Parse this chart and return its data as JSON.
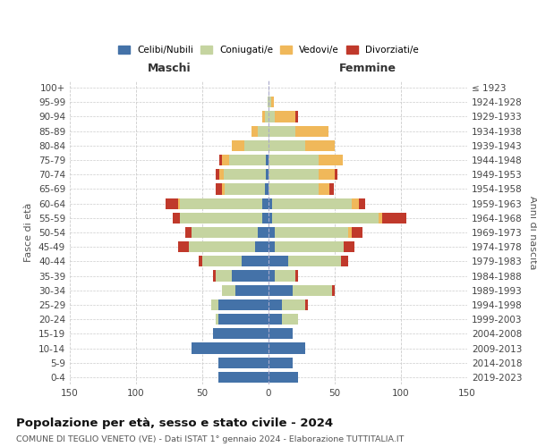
{
  "age_groups": [
    "0-4",
    "5-9",
    "10-14",
    "15-19",
    "20-24",
    "25-29",
    "30-34",
    "35-39",
    "40-44",
    "45-49",
    "50-54",
    "55-59",
    "60-64",
    "65-69",
    "70-74",
    "75-79",
    "80-84",
    "85-89",
    "90-94",
    "95-99",
    "100+"
  ],
  "birth_years": [
    "2019-2023",
    "2014-2018",
    "2009-2013",
    "2004-2008",
    "1999-2003",
    "1994-1998",
    "1989-1993",
    "1984-1988",
    "1979-1983",
    "1974-1978",
    "1969-1973",
    "1964-1968",
    "1959-1963",
    "1954-1958",
    "1949-1953",
    "1944-1948",
    "1939-1943",
    "1934-1938",
    "1929-1933",
    "1924-1928",
    "≤ 1923"
  ],
  "male": {
    "celibi": [
      38,
      38,
      58,
      42,
      38,
      38,
      25,
      28,
      20,
      10,
      8,
      5,
      5,
      3,
      2,
      2,
      0,
      0,
      0,
      0,
      0
    ],
    "coniugati": [
      0,
      0,
      0,
      0,
      2,
      5,
      10,
      12,
      30,
      50,
      50,
      62,
      62,
      30,
      32,
      28,
      18,
      8,
      3,
      1,
      0
    ],
    "vedovi": [
      0,
      0,
      0,
      0,
      0,
      0,
      0,
      0,
      0,
      0,
      0,
      0,
      1,
      2,
      3,
      5,
      10,
      5,
      2,
      0,
      0
    ],
    "divorziati": [
      0,
      0,
      0,
      0,
      0,
      0,
      0,
      2,
      3,
      8,
      5,
      5,
      10,
      5,
      3,
      2,
      0,
      0,
      0,
      0,
      0
    ]
  },
  "female": {
    "nubili": [
      22,
      18,
      28,
      18,
      10,
      10,
      18,
      5,
      15,
      5,
      5,
      3,
      3,
      0,
      0,
      0,
      0,
      0,
      0,
      0,
      0
    ],
    "coniugate": [
      0,
      0,
      0,
      0,
      12,
      18,
      30,
      15,
      40,
      52,
      55,
      80,
      60,
      38,
      38,
      38,
      28,
      20,
      5,
      2,
      0
    ],
    "vedove": [
      0,
      0,
      0,
      0,
      0,
      0,
      0,
      0,
      0,
      0,
      3,
      3,
      5,
      8,
      12,
      18,
      22,
      25,
      15,
      2,
      0
    ],
    "divorziate": [
      0,
      0,
      0,
      0,
      0,
      2,
      2,
      2,
      5,
      8,
      8,
      18,
      5,
      3,
      2,
      0,
      0,
      0,
      2,
      0,
      0
    ]
  },
  "colors": {
    "celibi": "#4472a8",
    "coniugati": "#c5d4a0",
    "vedovi": "#f0b85a",
    "divorziati": "#c0392b"
  },
  "xlim": 150,
  "title": "Popolazione per età, sesso e stato civile - 2024",
  "subtitle": "COMUNE DI TEGLIO VENETO (VE) - Dati ISTAT 1° gennaio 2024 - Elaborazione TUTTITALIA.IT",
  "ylabel_left": "Fasce di età",
  "ylabel_right": "Anni di nascita",
  "xlabel_left": "Maschi",
  "xlabel_right": "Femmine",
  "bg_color": "#ffffff",
  "grid_color": "#cccccc"
}
